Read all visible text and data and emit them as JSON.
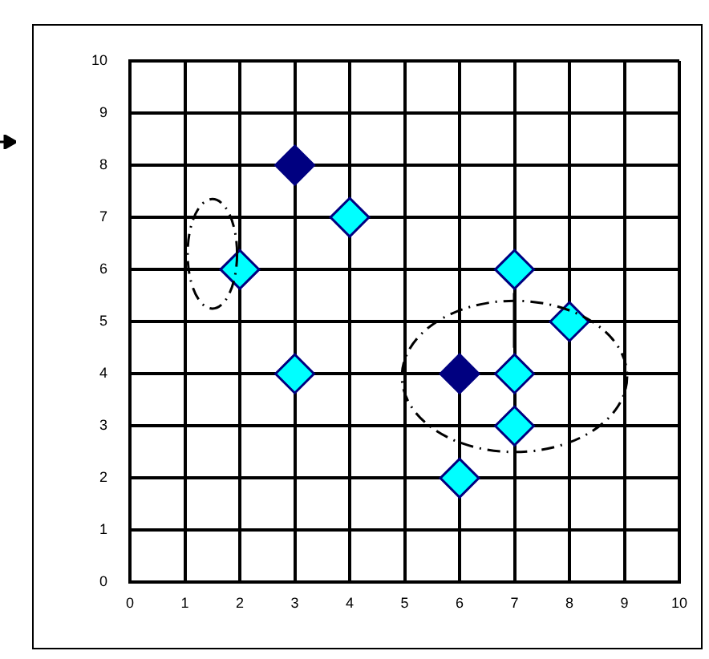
{
  "chart_data": {
    "type": "scatter",
    "xlim": [
      0,
      10
    ],
    "ylim": [
      0,
      10
    ],
    "xticks": [
      0,
      1,
      2,
      3,
      4,
      5,
      6,
      7,
      8,
      9,
      10
    ],
    "yticks": [
      0,
      1,
      2,
      3,
      4,
      5,
      6,
      7,
      8,
      9,
      10
    ],
    "grid": true,
    "legend": false,
    "marker": "diamond",
    "series": [
      {
        "color": "#000080",
        "x": [
          3,
          6
        ],
        "values": [
          8,
          4
        ]
      },
      {
        "color": "#00ffff",
        "x": [
          2,
          3,
          4,
          7,
          8,
          7,
          7,
          6
        ],
        "values": [
          6,
          4,
          7,
          6,
          5,
          4,
          3,
          2
        ]
      }
    ]
  }
}
